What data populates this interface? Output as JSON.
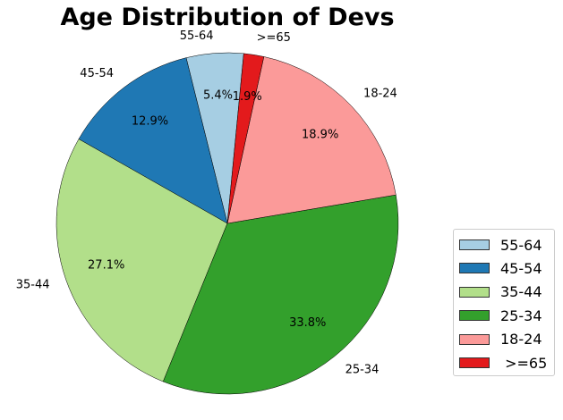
{
  "chart_data": {
    "type": "pie",
    "title": "Age Distribution of Devs",
    "categories": [
      "55-64",
      "45-54",
      "35-44",
      "25-34",
      "18-24",
      ">=65"
    ],
    "legend_labels": [
      "55-64",
      "45-54",
      "35-44",
      "25-34",
      "18-24",
      " >=65"
    ],
    "values": [
      5.4,
      12.9,
      27.1,
      33.8,
      18.9,
      1.9
    ],
    "pct_labels": [
      "5.4%",
      "12.9%",
      "27.1%",
      "33.8%",
      "18.9%",
      "1.9%"
    ],
    "colors": [
      "#a6cee3",
      "#1f78b4",
      "#b2df8a",
      "#33a02c",
      "#fb9a99",
      "#e31a1c"
    ],
    "legend_placement": "bottom-right"
  }
}
